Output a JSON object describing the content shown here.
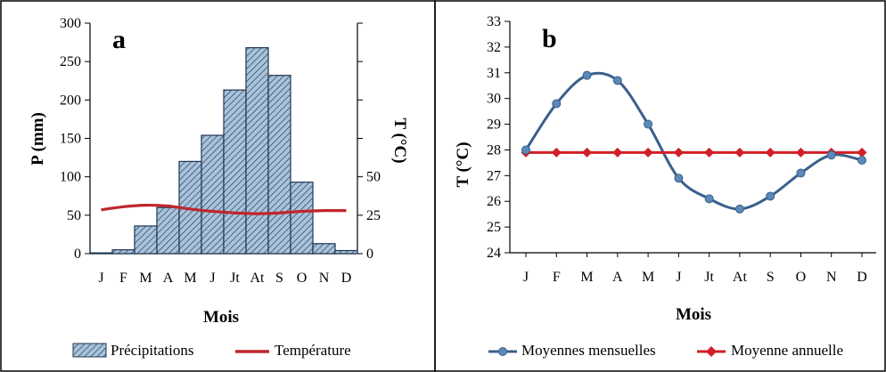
{
  "colors": {
    "bar_fill": "#a9c3dc",
    "bar_stroke": "#1f3550",
    "temperature_line": "#c0262d",
    "monthly_line": "#3a5f8c",
    "monthly_marker": "#5b89b8",
    "annual_line": "#d21f26"
  },
  "chart_data": [
    {
      "panel": "a",
      "type": "bar",
      "title": "",
      "xlabel": "Mois",
      "ylabel": "P (mm)",
      "y2label": "T (°C)",
      "categories": [
        "J",
        "F",
        "M",
        "A",
        "M",
        "J",
        "Jt",
        "At",
        "S",
        "O",
        "N",
        "D"
      ],
      "ylim": [
        0,
        300
      ],
      "yticks": [
        0,
        50,
        100,
        150,
        200,
        250,
        300
      ],
      "y2lim": [
        0,
        150
      ],
      "y2ticks": [
        0,
        25,
        50
      ],
      "grid": false,
      "legend_position": "bottom",
      "series": [
        {
          "name": "Précipitations",
          "type": "bar",
          "axis": "left",
          "values": [
            1,
            5,
            36,
            60,
            120,
            154,
            213,
            268,
            232,
            93,
            13,
            4
          ]
        },
        {
          "name": "Température",
          "type": "line",
          "axis": "right",
          "values": [
            28.5,
            30.5,
            31.5,
            31,
            29,
            27.5,
            26.5,
            26,
            26.5,
            27.5,
            28,
            28
          ]
        }
      ]
    },
    {
      "panel": "b",
      "type": "line",
      "title": "",
      "xlabel": "Mois",
      "ylabel": "T (°C)",
      "categories": [
        "J",
        "F",
        "M",
        "A",
        "M",
        "J",
        "Jt",
        "At",
        "S",
        "O",
        "N",
        "D"
      ],
      "ylim": [
        24,
        33
      ],
      "yticks": [
        24,
        25,
        26,
        27,
        28,
        29,
        30,
        31,
        32,
        33
      ],
      "grid": false,
      "legend_position": "bottom",
      "series": [
        {
          "name": "Moyennes mensuelles",
          "values": [
            28.0,
            29.8,
            30.9,
            30.7,
            29.0,
            26.9,
            26.1,
            25.7,
            26.2,
            27.1,
            27.8,
            27.6
          ]
        },
        {
          "name": "Moyenne annuelle",
          "values": [
            27.9,
            27.9,
            27.9,
            27.9,
            27.9,
            27.9,
            27.9,
            27.9,
            27.9,
            27.9,
            27.9,
            27.9
          ]
        }
      ]
    }
  ]
}
